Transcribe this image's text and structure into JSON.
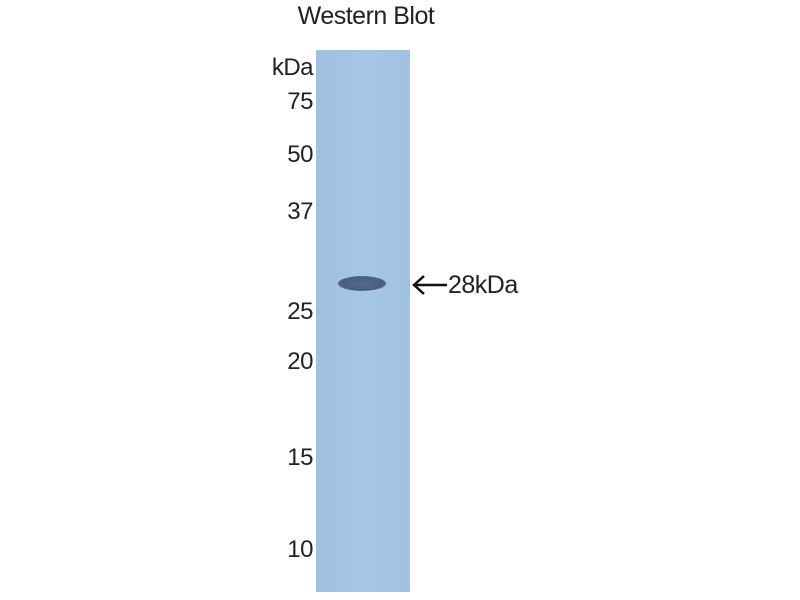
{
  "title": "Western Blot",
  "unit_label": "kDa",
  "markers": [
    "75",
    "50",
    "37",
    "25",
    "20",
    "15",
    "10"
  ],
  "band_label": "28kDa",
  "colors": {
    "membrane": "#a3c3e3",
    "band": "#4a5f7f"
  }
}
